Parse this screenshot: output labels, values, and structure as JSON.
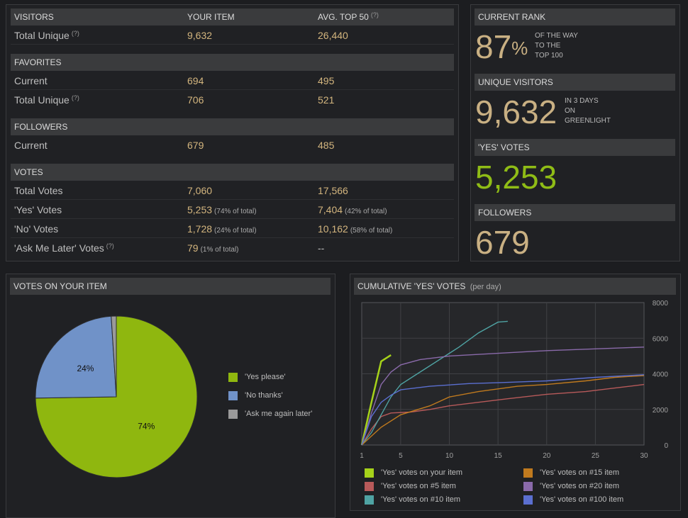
{
  "stats": {
    "sections": [
      {
        "title": "VISITORS",
        "col2": "YOUR ITEM",
        "col3": "AVG. TOP 50",
        "col3_help": "(?)",
        "rows": [
          {
            "label": "Total Unique",
            "help": "(?)",
            "yours": "9,632",
            "yours_pct": "",
            "avg": "26,440",
            "avg_pct": ""
          }
        ]
      },
      {
        "title": "FAVORITES",
        "col2": "",
        "col3": "",
        "col3_help": "",
        "rows": [
          {
            "label": "Current",
            "help": "",
            "yours": "694",
            "yours_pct": "",
            "avg": "495",
            "avg_pct": ""
          },
          {
            "label": "Total Unique",
            "help": "(?)",
            "yours": "706",
            "yours_pct": "",
            "avg": "521",
            "avg_pct": ""
          }
        ]
      },
      {
        "title": "FOLLOWERS",
        "col2": "",
        "col3": "",
        "col3_help": "",
        "rows": [
          {
            "label": "Current",
            "help": "",
            "yours": "679",
            "yours_pct": "",
            "avg": "485",
            "avg_pct": ""
          }
        ]
      },
      {
        "title": "VOTES",
        "col2": "",
        "col3": "",
        "col3_help": "",
        "rows": [
          {
            "label": "Total Votes",
            "help": "",
            "yours": "7,060",
            "yours_pct": "",
            "avg": "17,566",
            "avg_pct": ""
          },
          {
            "label": "'Yes' Votes",
            "help": "",
            "yours": "5,253",
            "yours_pct": "(74% of total)",
            "avg": "7,404",
            "avg_pct": "(42% of total)"
          },
          {
            "label": "'No' Votes",
            "help": "",
            "yours": "1,728",
            "yours_pct": "(24% of total)",
            "avg": "10,162",
            "avg_pct": "(58% of total)"
          },
          {
            "label": "'Ask Me Later' Votes",
            "help": "(?)",
            "yours": "79",
            "yours_pct": "(1% of total)",
            "avg": "--",
            "avg_pct": ""
          }
        ]
      }
    ]
  },
  "rank": {
    "current_rank": {
      "title": "CURRENT RANK",
      "value": "87",
      "suffix": "%",
      "note_lines": [
        "OF THE WAY",
        "TO THE",
        "TOP 100"
      ]
    },
    "unique_visitors": {
      "title": "UNIQUE VISITORS",
      "value": "9,632",
      "note_lines": [
        "IN 3 DAYS",
        "ON",
        "GREENLIGHT"
      ]
    },
    "yes_votes": {
      "title": "'YES' VOTES",
      "value": "5,253"
    },
    "followers": {
      "title": "FOLLOWERS",
      "value": "679"
    }
  },
  "pie_panel": {
    "title": "VOTES ON YOUR ITEM",
    "chart_data": {
      "type": "pie",
      "slices": [
        {
          "name": "'Yes please'",
          "value": 74,
          "label": "74%",
          "color": "#8fb70f"
        },
        {
          "name": "'No thanks'",
          "value": 24,
          "label": "24%",
          "color": "#7092c8"
        },
        {
          "name": "'Ask me again later'",
          "value": 1,
          "label": "",
          "color": "#9a9a9a"
        }
      ]
    }
  },
  "line_panel": {
    "title": "CUMULATIVE 'YES' VOTES",
    "subtitle": "(per day)",
    "chart_data": {
      "type": "line",
      "xlim": [
        1,
        30
      ],
      "ylim": [
        0,
        8000
      ],
      "x_ticks": [
        1,
        5,
        10,
        15,
        20,
        25,
        30
      ],
      "y_ticks": [
        0,
        2000,
        4000,
        6000,
        8000
      ],
      "grid": true,
      "series": [
        {
          "name": "'Yes' votes on your item",
          "color": "#a6d21a",
          "points": [
            [
              1,
              0
            ],
            [
              2,
              2400
            ],
            [
              3,
              4700
            ],
            [
              4,
              5050
            ]
          ]
        },
        {
          "name": "'Yes' votes on #5 item",
          "color": "#b85a5a",
          "points": [
            [
              1,
              0
            ],
            [
              2,
              900
            ],
            [
              3,
              1600
            ],
            [
              4,
              1800
            ],
            [
              6,
              1850
            ],
            [
              8,
              2000
            ],
            [
              10,
              2200
            ],
            [
              13,
              2400
            ],
            [
              16,
              2600
            ],
            [
              20,
              2850
            ],
            [
              24,
              3000
            ],
            [
              27,
              3200
            ],
            [
              30,
              3400
            ]
          ]
        },
        {
          "name": "'Yes' votes on #10 item",
          "color": "#4fa3a3",
          "points": [
            [
              1,
              0
            ],
            [
              2,
              700
            ],
            [
              3,
              1700
            ],
            [
              4,
              2700
            ],
            [
              5,
              3400
            ],
            [
              7,
              4100
            ],
            [
              9,
              4800
            ],
            [
              11,
              5500
            ],
            [
              13,
              6300
            ],
            [
              15,
              6900
            ],
            [
              16,
              6950
            ]
          ]
        },
        {
          "name": "'Yes' votes on #15 item",
          "color": "#c07a1e",
          "points": [
            [
              1,
              0
            ],
            [
              2,
              500
            ],
            [
              3,
              1000
            ],
            [
              5,
              1700
            ],
            [
              8,
              2200
            ],
            [
              10,
              2700
            ],
            [
              13,
              3000
            ],
            [
              17,
              3300
            ],
            [
              20,
              3400
            ],
            [
              24,
              3600
            ],
            [
              27,
              3800
            ],
            [
              30,
              3900
            ]
          ]
        },
        {
          "name": "'Yes' votes on #20 item",
          "color": "#8a6aaa",
          "points": [
            [
              1,
              0
            ],
            [
              2,
              1800
            ],
            [
              3,
              3400
            ],
            [
              4,
              4100
            ],
            [
              5,
              4500
            ],
            [
              7,
              4800
            ],
            [
              10,
              5000
            ],
            [
              15,
              5150
            ],
            [
              20,
              5300
            ],
            [
              25,
              5400
            ],
            [
              30,
              5500
            ]
          ]
        },
        {
          "name": "'Yes' votes on #100 item",
          "color": "#5b6fd0",
          "points": [
            [
              1,
              0
            ],
            [
              2,
              1600
            ],
            [
              3,
              2400
            ],
            [
              4,
              2800
            ],
            [
              5,
              3100
            ],
            [
              8,
              3300
            ],
            [
              12,
              3450
            ],
            [
              15,
              3500
            ],
            [
              20,
              3600
            ],
            [
              25,
              3800
            ],
            [
              30,
              3950
            ]
          ]
        }
      ]
    }
  }
}
